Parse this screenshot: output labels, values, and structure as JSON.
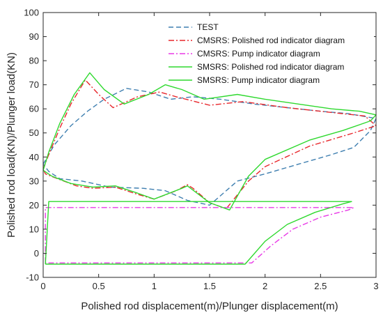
{
  "chart_data": {
    "type": "line",
    "xlabel": "Polished rod displacement(m)/Plunger displacement(m)",
    "ylabel": "Polished rod load(KN)/Plunger load(KN)",
    "xlim": [
      0,
      3
    ],
    "ylim": [
      -10,
      100
    ],
    "xticks": [
      0,
      0.5,
      1,
      1.5,
      2,
      2.5,
      3
    ],
    "xtick_labels": [
      "0",
      "0.5",
      "1",
      "1.5",
      "2",
      "2.5",
      "3"
    ],
    "yticks": [
      -10,
      0,
      10,
      20,
      30,
      40,
      50,
      60,
      70,
      80,
      90,
      100
    ],
    "ytick_labels": [
      "-10",
      "0",
      "10",
      "20",
      "30",
      "40",
      "50",
      "60",
      "70",
      "80",
      "90",
      "100"
    ],
    "grid": false,
    "legend_position": "top-right",
    "series": [
      {
        "name": "TEST",
        "color": "#3f7fb0",
        "style": "dashed",
        "points": [
          [
            0,
            37
          ],
          [
            0.1,
            45
          ],
          [
            0.25,
            53
          ],
          [
            0.4,
            59
          ],
          [
            0.55,
            64
          ],
          [
            0.75,
            68.5
          ],
          [
            0.95,
            67
          ],
          [
            1.15,
            64
          ],
          [
            1.35,
            65
          ],
          [
            1.6,
            64
          ],
          [
            1.9,
            62
          ],
          [
            2.2,
            60.5
          ],
          [
            2.5,
            59
          ],
          [
            2.75,
            58
          ],
          [
            3.0,
            56
          ],
          [
            2.95,
            51
          ],
          [
            2.8,
            44
          ],
          [
            2.6,
            41
          ],
          [
            2.3,
            37
          ],
          [
            2.0,
            33
          ],
          [
            1.75,
            30
          ],
          [
            1.5,
            20
          ],
          [
            1.3,
            22
          ],
          [
            1.1,
            26
          ],
          [
            0.9,
            27
          ],
          [
            0.6,
            27.5
          ],
          [
            0.35,
            30
          ],
          [
            0.15,
            31
          ],
          [
            0.05,
            34
          ],
          [
            0,
            37
          ]
        ]
      },
      {
        "name": "CMSRS: Polished rod indicator diagram",
        "color": "#e8262b",
        "style": "dashdot",
        "points": [
          [
            0,
            35
          ],
          [
            0.05,
            41
          ],
          [
            0.15,
            52
          ],
          [
            0.25,
            62
          ],
          [
            0.38,
            72
          ],
          [
            0.5,
            66
          ],
          [
            0.63,
            60.5
          ],
          [
            0.85,
            65
          ],
          [
            1.05,
            67
          ],
          [
            1.2,
            65
          ],
          [
            1.5,
            61.5
          ],
          [
            1.8,
            63
          ],
          [
            2.2,
            60.5
          ],
          [
            2.6,
            58.5
          ],
          [
            2.9,
            57
          ],
          [
            3.0,
            53
          ],
          [
            2.8,
            50
          ],
          [
            2.4,
            44.5
          ],
          [
            2.0,
            36
          ],
          [
            1.85,
            30
          ],
          [
            1.65,
            18.5
          ],
          [
            1.5,
            21
          ],
          [
            1.35,
            27
          ],
          [
            1.3,
            28.5
          ],
          [
            1.2,
            26
          ],
          [
            1.0,
            22.5
          ],
          [
            0.85,
            24.5
          ],
          [
            0.65,
            27.5
          ],
          [
            0.45,
            27
          ],
          [
            0.3,
            28
          ],
          [
            0.1,
            31.5
          ],
          [
            0.02,
            33
          ],
          [
            0,
            35
          ]
        ]
      },
      {
        "name": "CMSRS: Pump indicator diagram",
        "color": "#e838e6",
        "style": "dashdot",
        "points": [
          [
            0.02,
            -4
          ],
          [
            0.02,
            19
          ],
          [
            2.8,
            19
          ],
          [
            2.75,
            18
          ],
          [
            2.5,
            15
          ],
          [
            2.25,
            10
          ],
          [
            2.05,
            3
          ],
          [
            1.88,
            -4
          ],
          [
            0.02,
            -4
          ]
        ]
      },
      {
        "name": "SMSRS: Polished rod indicator diagram",
        "color": "#2fd92f",
        "style": "solid",
        "points": [
          [
            0,
            34.5
          ],
          [
            0.05,
            42
          ],
          [
            0.15,
            54
          ],
          [
            0.28,
            66
          ],
          [
            0.42,
            75
          ],
          [
            0.55,
            68
          ],
          [
            0.73,
            62
          ],
          [
            0.95,
            66
          ],
          [
            1.1,
            70
          ],
          [
            1.25,
            68
          ],
          [
            1.45,
            64
          ],
          [
            1.75,
            66
          ],
          [
            2.0,
            64
          ],
          [
            2.3,
            62
          ],
          [
            2.6,
            60
          ],
          [
            2.85,
            59
          ],
          [
            3.0,
            57.5
          ],
          [
            2.95,
            55
          ],
          [
            2.7,
            51
          ],
          [
            2.4,
            47
          ],
          [
            2.0,
            39
          ],
          [
            1.85,
            32
          ],
          [
            1.68,
            18
          ],
          [
            1.5,
            21
          ],
          [
            1.3,
            28
          ],
          [
            1.25,
            27
          ],
          [
            1.0,
            22.5
          ],
          [
            0.85,
            25
          ],
          [
            0.65,
            28
          ],
          [
            0.45,
            27.5
          ],
          [
            0.25,
            29
          ],
          [
            0.08,
            32
          ],
          [
            0,
            34.5
          ]
        ]
      },
      {
        "name": "SMSRS: Pump indicator diagram",
        "color": "#2fd92f",
        "style": "solid",
        "points": [
          [
            0.02,
            -4.5
          ],
          [
            0.05,
            21.5
          ],
          [
            2.78,
            21.5
          ],
          [
            2.7,
            20.5
          ],
          [
            2.45,
            17
          ],
          [
            2.2,
            12
          ],
          [
            2.0,
            5
          ],
          [
            1.82,
            -4.5
          ],
          [
            0.02,
            -4.5
          ]
        ]
      }
    ]
  }
}
